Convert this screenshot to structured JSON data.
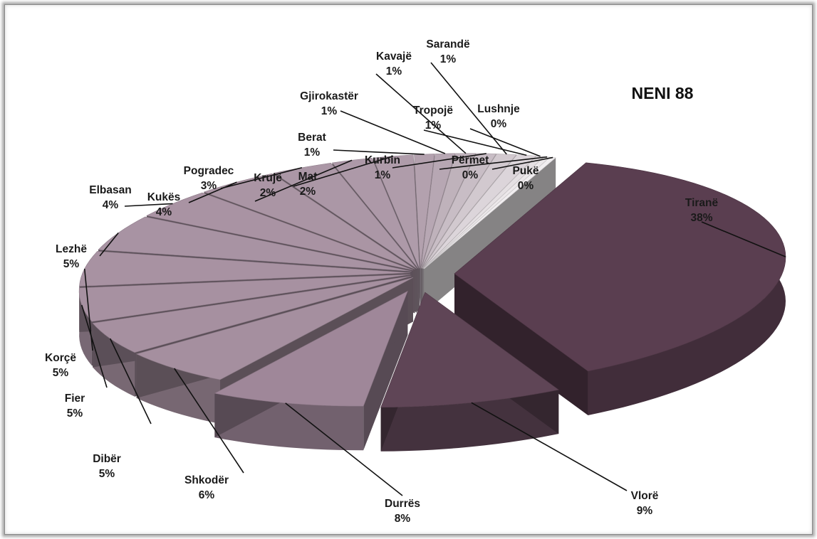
{
  "chart_data": {
    "type": "pie",
    "title": "NENI  88",
    "style": "3d-exploded",
    "slices": [
      {
        "label": "Tiranë",
        "pct_label": "38%",
        "value": 38,
        "color": "#5a3e50"
      },
      {
        "label": "Vlorë",
        "pct_label": "9%",
        "value": 9,
        "color": "#5f4556"
      },
      {
        "label": "Durrës",
        "pct_label": "8%",
        "value": 8,
        "color": "#9f8799"
      },
      {
        "label": "Shkodër",
        "pct_label": "6%",
        "value": 6,
        "color": "#a58f9f"
      },
      {
        "label": "Dibër",
        "pct_label": "5%",
        "value": 5,
        "color": "#a690a0"
      },
      {
        "label": "Fier",
        "pct_label": "5%",
        "value": 5,
        "color": "#a791a1"
      },
      {
        "label": "Korçë",
        "pct_label": "5%",
        "value": 5,
        "color": "#a892a2"
      },
      {
        "label": "Lezhë",
        "pct_label": "5%",
        "value": 5,
        "color": "#a893a3"
      },
      {
        "label": "Elbasan",
        "pct_label": "4%",
        "value": 4,
        "color": "#a993a3"
      },
      {
        "label": "Kukës",
        "pct_label": "4%",
        "value": 4,
        "color": "#aa95a4"
      },
      {
        "label": "Pogradec",
        "pct_label": "3%",
        "value": 3,
        "color": "#ab97a6"
      },
      {
        "label": "Krujë",
        "pct_label": "2%",
        "value": 2,
        "color": "#ad99a8"
      },
      {
        "label": "Mat",
        "pct_label": "2%",
        "value": 2,
        "color": "#af9caa"
      },
      {
        "label": "Berat",
        "pct_label": "1%",
        "value": 1,
        "color": "#b3a1ae"
      },
      {
        "label": "Gjirokastër",
        "pct_label": "1%",
        "value": 1,
        "color": "#b7a7b3"
      },
      {
        "label": "Kavajë",
        "pct_label": "1%",
        "value": 1,
        "color": "#bfb2bb"
      },
      {
        "label": "Kurbin",
        "pct_label": "1%",
        "value": 1,
        "color": "#c8bdc5"
      },
      {
        "label": "Sarandë",
        "pct_label": "1%",
        "value": 1,
        "color": "#d2c9cf"
      },
      {
        "label": "Tropojë",
        "pct_label": "1%",
        "value": 1,
        "color": "#dcd5da"
      },
      {
        "label": "Lushnje",
        "pct_label": "0%",
        "value": 0.4,
        "color": "#e5e0e3"
      },
      {
        "label": "Përmet",
        "pct_label": "0%",
        "value": 0.3,
        "color": "#ece8ea"
      },
      {
        "label": "Pukë",
        "pct_label": "0%",
        "value": 0.3,
        "color": "#f1eef0"
      }
    ]
  }
}
